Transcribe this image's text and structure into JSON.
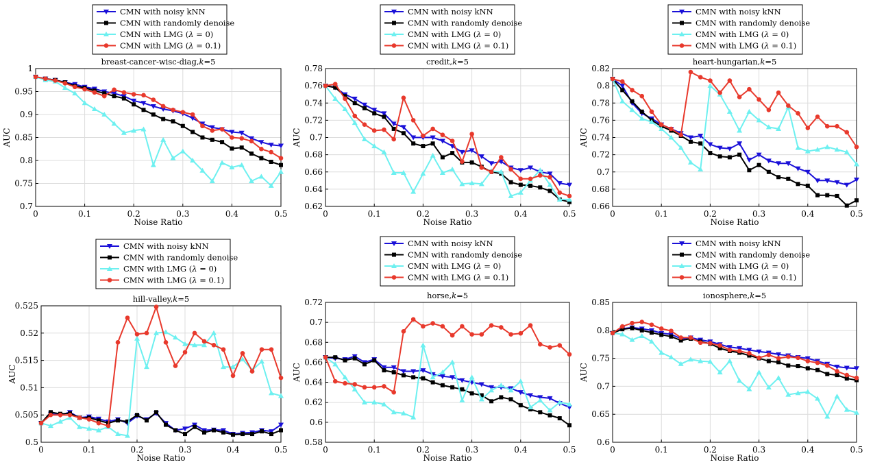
{
  "legend_labels": [
    "CMN with noisy kNN",
    "CMN with randomly denoise",
    "CMN with LMG (λ = 0)",
    "CMN with LMG (λ = 0.1)"
  ],
  "colors": {
    "noisy": "#1a10d8",
    "random": "#000000",
    "lmg0": "#6df0f0",
    "lmg01": "#e8392c",
    "grid": "#dcdcdc"
  },
  "chart_data": [
    {
      "type": "line",
      "title": "breast-cancer-wisc-diag,k=5",
      "xlabel": "Noise Ratio",
      "ylabel": "AUC",
      "xlim": [
        0,
        0.5
      ],
      "ylim": [
        0.7,
        1.0
      ],
      "xticks": [
        "0",
        "0.1",
        "0.2",
        "0.3",
        "0.4",
        "0.5"
      ],
      "yticks": [
        "0.7",
        "0.75",
        "0.8",
        "0.85",
        "0.9",
        "0.95",
        "1"
      ],
      "x": [
        0,
        0.02,
        0.04,
        0.06,
        0.08,
        0.1,
        0.12,
        0.14,
        0.16,
        0.18,
        0.2,
        0.22,
        0.24,
        0.26,
        0.28,
        0.3,
        0.32,
        0.34,
        0.36,
        0.38,
        0.4,
        0.42,
        0.44,
        0.46,
        0.48,
        0.5
      ],
      "series": [
        {
          "name": "CMN with noisy kNN",
          "values": [
            0.982,
            0.978,
            0.975,
            0.97,
            0.966,
            0.96,
            0.956,
            0.95,
            0.946,
            0.94,
            0.93,
            0.925,
            0.918,
            0.912,
            0.908,
            0.902,
            0.892,
            0.88,
            0.872,
            0.868,
            0.862,
            0.86,
            0.848,
            0.84,
            0.834,
            0.832
          ]
        },
        {
          "name": "CMN with randomly denoise",
          "values": [
            0.982,
            0.978,
            0.975,
            0.97,
            0.962,
            0.958,
            0.952,
            0.946,
            0.94,
            0.935,
            0.922,
            0.91,
            0.9,
            0.89,
            0.885,
            0.875,
            0.862,
            0.85,
            0.845,
            0.84,
            0.826,
            0.828,
            0.815,
            0.805,
            0.797,
            0.79
          ]
        },
        {
          "name": "CMN with LMG (λ = 0)",
          "values": [
            0.982,
            0.975,
            0.972,
            0.958,
            0.946,
            0.925,
            0.912,
            0.9,
            0.88,
            0.86,
            0.865,
            0.868,
            0.79,
            0.845,
            0.805,
            0.82,
            0.8,
            0.778,
            0.755,
            0.795,
            0.785,
            0.79,
            0.755,
            0.765,
            0.745,
            0.775
          ]
        },
        {
          "name": "CMN with LMG (λ = 0.1)",
          "values": [
            0.982,
            0.978,
            0.974,
            0.968,
            0.96,
            0.955,
            0.948,
            0.94,
            0.954,
            0.948,
            0.944,
            0.942,
            0.932,
            0.918,
            0.91,
            0.905,
            0.9,
            0.875,
            0.865,
            0.868,
            0.85,
            0.848,
            0.842,
            0.825,
            0.818,
            0.805
          ]
        }
      ]
    },
    {
      "type": "line",
      "title": "credit,k=5",
      "xlabel": "Noise Ratio",
      "ylabel": "AUC",
      "xlim": [
        0,
        0.5
      ],
      "ylim": [
        0.62,
        0.78
      ],
      "xticks": [
        "0",
        "0.1",
        "0.2",
        "0.3",
        "0.4",
        "0.5"
      ],
      "yticks": [
        "0.62",
        "0.64",
        "0.66",
        "0.68",
        "0.7",
        "0.72",
        "0.74",
        "0.76",
        "0.78"
      ],
      "x": [
        0,
        0.02,
        0.04,
        0.06,
        0.08,
        0.1,
        0.12,
        0.14,
        0.16,
        0.18,
        0.2,
        0.22,
        0.24,
        0.26,
        0.28,
        0.3,
        0.32,
        0.34,
        0.36,
        0.38,
        0.4,
        0.42,
        0.44,
        0.46,
        0.48,
        0.5
      ],
      "series": [
        {
          "name": "CMN with noisy kNN",
          "values": [
            0.76,
            0.758,
            0.75,
            0.745,
            0.738,
            0.732,
            0.728,
            0.716,
            0.712,
            0.7,
            0.7,
            0.7,
            0.696,
            0.69,
            0.683,
            0.685,
            0.678,
            0.67,
            0.672,
            0.665,
            0.662,
            0.665,
            0.66,
            0.658,
            0.647,
            0.645
          ]
        },
        {
          "name": "CMN with randomly denoise",
          "values": [
            0.76,
            0.758,
            0.748,
            0.74,
            0.734,
            0.728,
            0.724,
            0.71,
            0.705,
            0.693,
            0.69,
            0.693,
            0.677,
            0.682,
            0.671,
            0.671,
            0.666,
            0.66,
            0.658,
            0.648,
            0.645,
            0.644,
            0.642,
            0.638,
            0.628,
            0.625
          ]
        },
        {
          "name": "CMN with LMG (λ = 0)",
          "values": [
            0.76,
            0.745,
            0.733,
            0.717,
            0.698,
            0.69,
            0.683,
            0.659,
            0.659,
            0.637,
            0.658,
            0.679,
            0.659,
            0.663,
            0.646,
            0.647,
            0.646,
            0.661,
            0.66,
            0.632,
            0.636,
            0.65,
            0.662,
            0.645,
            0.628,
            0.628
          ]
        },
        {
          "name": "CMN with LMG (λ = 0.1)",
          "values": [
            0.76,
            0.762,
            0.745,
            0.725,
            0.715,
            0.708,
            0.709,
            0.698,
            0.746,
            0.72,
            0.702,
            0.71,
            0.703,
            0.696,
            0.672,
            0.704,
            0.665,
            0.66,
            0.677,
            0.663,
            0.652,
            0.652,
            0.656,
            0.654,
            0.636,
            0.632
          ]
        }
      ]
    },
    {
      "type": "line",
      "title": "heart-hungarian,k=5",
      "xlabel": "Noise Ratio",
      "ylabel": "AUC",
      "xlim": [
        0,
        0.5
      ],
      "ylim": [
        0.66,
        0.82
      ],
      "xticks": [
        "0",
        "0.1",
        "0.2",
        "0.3",
        "0.4",
        "0.5"
      ],
      "yticks": [
        "0.66",
        "0.68",
        "0.7",
        "0.72",
        "0.74",
        "0.76",
        "0.78",
        "0.8",
        "0.82"
      ],
      "x": [
        0,
        0.02,
        0.04,
        0.06,
        0.08,
        0.1,
        0.12,
        0.14,
        0.16,
        0.18,
        0.2,
        0.22,
        0.24,
        0.26,
        0.28,
        0.3,
        0.32,
        0.34,
        0.36,
        0.38,
        0.4,
        0.42,
        0.44,
        0.46,
        0.48,
        0.5
      ],
      "series": [
        {
          "name": "CMN with noisy kNN",
          "values": [
            0.808,
            0.8,
            0.78,
            0.768,
            0.762,
            0.755,
            0.75,
            0.745,
            0.74,
            0.742,
            0.732,
            0.728,
            0.727,
            0.733,
            0.714,
            0.72,
            0.713,
            0.71,
            0.71,
            0.704,
            0.7,
            0.69,
            0.69,
            0.688,
            0.685,
            0.691
          ]
        },
        {
          "name": "CMN with randomly denoise",
          "values": [
            0.808,
            0.795,
            0.782,
            0.77,
            0.76,
            0.753,
            0.748,
            0.742,
            0.735,
            0.733,
            0.722,
            0.718,
            0.717,
            0.72,
            0.702,
            0.708,
            0.7,
            0.694,
            0.692,
            0.686,
            0.684,
            0.673,
            0.673,
            0.672,
            0.661,
            0.667
          ]
        },
        {
          "name": "CMN with LMG (λ = 0)",
          "values": [
            0.808,
            0.782,
            0.772,
            0.762,
            0.758,
            0.75,
            0.74,
            0.728,
            0.711,
            0.703,
            0.8,
            0.79,
            0.77,
            0.748,
            0.77,
            0.76,
            0.752,
            0.75,
            0.775,
            0.728,
            0.724,
            0.726,
            0.729,
            0.726,
            0.723,
            0.709
          ]
        },
        {
          "name": "CMN with LMG (λ = 0.1)",
          "values": [
            0.808,
            0.805,
            0.795,
            0.788,
            0.77,
            0.755,
            0.75,
            0.743,
            0.816,
            0.81,
            0.806,
            0.792,
            0.806,
            0.787,
            0.796,
            0.784,
            0.772,
            0.792,
            0.777,
            0.768,
            0.751,
            0.764,
            0.753,
            0.753,
            0.746,
            0.729
          ]
        }
      ]
    },
    {
      "type": "line",
      "title": "hill-valley,k=5",
      "xlabel": "Noise Ratio",
      "ylabel": "AUC",
      "xlim": [
        0,
        0.5
      ],
      "ylim": [
        0.5,
        0.525
      ],
      "xticks": [
        "0",
        "0.1",
        "0.2",
        "0.3",
        "0.4",
        "0.5"
      ],
      "yticks": [
        "0.5",
        "0.505",
        "0.51",
        "0.515",
        "0.52",
        "0.525"
      ],
      "x": [
        0,
        0.02,
        0.04,
        0.06,
        0.08,
        0.1,
        0.12,
        0.14,
        0.16,
        0.18,
        0.2,
        0.22,
        0.24,
        0.26,
        0.28,
        0.3,
        0.32,
        0.34,
        0.36,
        0.38,
        0.4,
        0.42,
        0.44,
        0.46,
        0.48,
        0.5
      ],
      "series": [
        {
          "name": "CMN with noisy kNN",
          "values": [
            0.5035,
            0.5052,
            0.505,
            0.5055,
            0.5045,
            0.5047,
            0.5043,
            0.5038,
            0.5042,
            0.5035,
            0.5048,
            0.5042,
            0.5053,
            0.5035,
            0.5022,
            0.5025,
            0.5032,
            0.5022,
            0.5023,
            0.5022,
            0.5015,
            0.5017,
            0.5018,
            0.5022,
            0.502,
            0.5032
          ]
        },
        {
          "name": "CMN with randomly denoise",
          "values": [
            0.5035,
            0.5055,
            0.5052,
            0.5053,
            0.5045,
            0.5045,
            0.504,
            0.5035,
            0.504,
            0.5038,
            0.505,
            0.504,
            0.5055,
            0.5032,
            0.5022,
            0.5015,
            0.5028,
            0.5018,
            0.5022,
            0.5018,
            0.5014,
            0.5015,
            0.5015,
            0.502,
            0.5015,
            0.5022
          ]
        },
        {
          "name": "CMN with LMG (λ = 0)",
          "values": [
            0.5035,
            0.503,
            0.5038,
            0.5045,
            0.5028,
            0.5025,
            0.5022,
            0.5028,
            0.5015,
            0.5012,
            0.519,
            0.5138,
            0.52,
            0.5202,
            0.5192,
            0.518,
            0.5178,
            0.5178,
            0.52,
            0.5138,
            0.5138,
            0.5152,
            0.5132,
            0.5148,
            0.509,
            0.5085
          ]
        },
        {
          "name": "CMN with LMG (λ = 0.1)",
          "values": [
            0.5035,
            0.505,
            0.505,
            0.505,
            0.5045,
            0.5042,
            0.5035,
            0.503,
            0.5183,
            0.5228,
            0.5198,
            0.52,
            0.5248,
            0.5183,
            0.514,
            0.5165,
            0.52,
            0.5185,
            0.5178,
            0.517,
            0.5122,
            0.5163,
            0.513,
            0.517,
            0.517,
            0.5118
          ]
        }
      ]
    },
    {
      "type": "line",
      "title": "horse,k=5",
      "xlabel": "Noise Ratio",
      "ylabel": "AUC",
      "xlim": [
        0,
        0.5
      ],
      "ylim": [
        0.58,
        0.72
      ],
      "xticks": [
        "0",
        "0.1",
        "0.2",
        "0.3",
        "0.4",
        "0.5"
      ],
      "yticks": [
        "0.58",
        "0.6",
        "0.62",
        "0.64",
        "0.66",
        "0.68",
        "0.7",
        "0.72"
      ],
      "x": [
        0,
        0.02,
        0.04,
        0.06,
        0.08,
        0.1,
        0.12,
        0.14,
        0.16,
        0.18,
        0.2,
        0.22,
        0.24,
        0.26,
        0.28,
        0.3,
        0.32,
        0.34,
        0.36,
        0.38,
        0.4,
        0.42,
        0.44,
        0.46,
        0.48,
        0.5
      ],
      "series": [
        {
          "name": "CMN with noisy kNN",
          "values": [
            0.665,
            0.664,
            0.663,
            0.666,
            0.66,
            0.663,
            0.655,
            0.655,
            0.651,
            0.651,
            0.652,
            0.648,
            0.646,
            0.645,
            0.642,
            0.64,
            0.638,
            0.635,
            0.635,
            0.634,
            0.63,
            0.627,
            0.625,
            0.624,
            0.619,
            0.615
          ]
        },
        {
          "name": "CMN with randomly denoise",
          "values": [
            0.665,
            0.665,
            0.662,
            0.664,
            0.658,
            0.662,
            0.652,
            0.65,
            0.647,
            0.645,
            0.644,
            0.64,
            0.637,
            0.635,
            0.633,
            0.629,
            0.627,
            0.621,
            0.625,
            0.623,
            0.617,
            0.613,
            0.61,
            0.607,
            0.604,
            0.597
          ]
        },
        {
          "name": "CMN with LMG (λ = 0)",
          "values": [
            0.665,
            0.658,
            0.645,
            0.633,
            0.62,
            0.62,
            0.618,
            0.61,
            0.609,
            0.605,
            0.677,
            0.645,
            0.65,
            0.66,
            0.622,
            0.645,
            0.623,
            0.632,
            0.637,
            0.632,
            0.641,
            0.615,
            0.622,
            0.612,
            0.62,
            0.618
          ]
        },
        {
          "name": "CMN with LMG (λ = 0.1)",
          "values": [
            0.665,
            0.641,
            0.639,
            0.638,
            0.635,
            0.635,
            0.636,
            0.63,
            0.691,
            0.703,
            0.696,
            0.699,
            0.696,
            0.687,
            0.696,
            0.688,
            0.688,
            0.697,
            0.695,
            0.688,
            0.689,
            0.697,
            0.678,
            0.675,
            0.677,
            0.668
          ]
        }
      ]
    },
    {
      "type": "line",
      "title": "ionosphere,k=5",
      "xlabel": "Noise Ratio",
      "ylabel": "AUC",
      "xlim": [
        0,
        0.5
      ],
      "ylim": [
        0.6,
        0.85
      ],
      "xticks": [
        "0",
        "0.1",
        "0.2",
        "0.3",
        "0.4",
        "0.5"
      ],
      "yticks": [
        "0.6",
        "0.65",
        "0.7",
        "0.75",
        "0.8",
        "0.85"
      ],
      "x": [
        0,
        0.02,
        0.04,
        0.06,
        0.08,
        0.1,
        0.12,
        0.14,
        0.16,
        0.18,
        0.2,
        0.22,
        0.24,
        0.26,
        0.28,
        0.3,
        0.32,
        0.34,
        0.36,
        0.38,
        0.4,
        0.42,
        0.44,
        0.46,
        0.48,
        0.5
      ],
      "series": [
        {
          "name": "CMN with noisy kNN",
          "values": [
            0.795,
            0.803,
            0.805,
            0.803,
            0.8,
            0.795,
            0.793,
            0.785,
            0.787,
            0.783,
            0.78,
            0.775,
            0.77,
            0.768,
            0.765,
            0.762,
            0.76,
            0.757,
            0.755,
            0.752,
            0.75,
            0.745,
            0.74,
            0.735,
            0.733,
            0.732
          ]
        },
        {
          "name": "CMN with randomly denoise",
          "values": [
            0.795,
            0.802,
            0.804,
            0.8,
            0.796,
            0.792,
            0.789,
            0.782,
            0.785,
            0.78,
            0.776,
            0.768,
            0.763,
            0.76,
            0.755,
            0.75,
            0.745,
            0.743,
            0.737,
            0.736,
            0.732,
            0.729,
            0.722,
            0.72,
            0.714,
            0.711
          ]
        },
        {
          "name": "CMN with LMG (λ = 0)",
          "values": [
            0.795,
            0.793,
            0.783,
            0.79,
            0.78,
            0.76,
            0.752,
            0.74,
            0.748,
            0.745,
            0.744,
            0.725,
            0.745,
            0.71,
            0.695,
            0.725,
            0.698,
            0.715,
            0.685,
            0.688,
            0.69,
            0.678,
            0.646,
            0.682,
            0.658,
            0.653
          ]
        },
        {
          "name": "CMN with LMG (λ = 0.1)",
          "values": [
            0.795,
            0.807,
            0.813,
            0.815,
            0.81,
            0.803,
            0.799,
            0.787,
            0.787,
            0.778,
            0.777,
            0.773,
            0.765,
            0.763,
            0.759,
            0.751,
            0.756,
            0.75,
            0.753,
            0.751,
            0.745,
            0.742,
            0.737,
            0.727,
            0.72,
            0.715
          ]
        }
      ]
    }
  ]
}
